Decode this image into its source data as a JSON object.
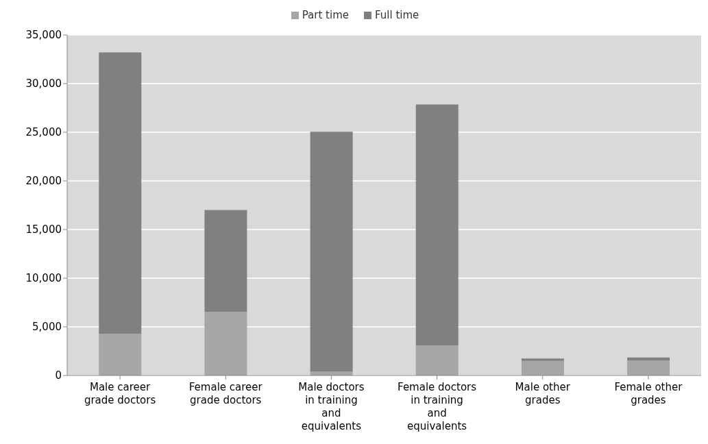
{
  "chart_data": {
    "type": "bar",
    "stacked": true,
    "categories": [
      "Male career grade doctors",
      "Female career grade doctors",
      "Male doctors in training and equivalents",
      "Female doctors in training and equivalents",
      "Male other grades",
      "Female other grades"
    ],
    "series": [
      {
        "name": "Part time",
        "color": "#a6a6a6",
        "values": [
          4300,
          6550,
          400,
          3100,
          1500,
          1550
        ]
      },
      {
        "name": "Full time",
        "color": "#808080",
        "values": [
          28900,
          10450,
          24650,
          24750,
          250,
          300
        ]
      }
    ],
    "ylim": [
      0,
      35000
    ],
    "yticks": [
      0,
      {
        "value": 5000,
        "label": "5,000"
      },
      {
        "value": 10000,
        "label": "10,000"
      },
      {
        "value": 15000,
        "label": "15,000"
      },
      {
        "value": 20000,
        "label": "20,000"
      },
      {
        "value": 25000,
        "label": "25,000"
      },
      {
        "value": 30000,
        "label": "30,000"
      },
      {
        "value": 35000,
        "label": "35,000"
      }
    ],
    "grid": "y",
    "legend": "top"
  }
}
